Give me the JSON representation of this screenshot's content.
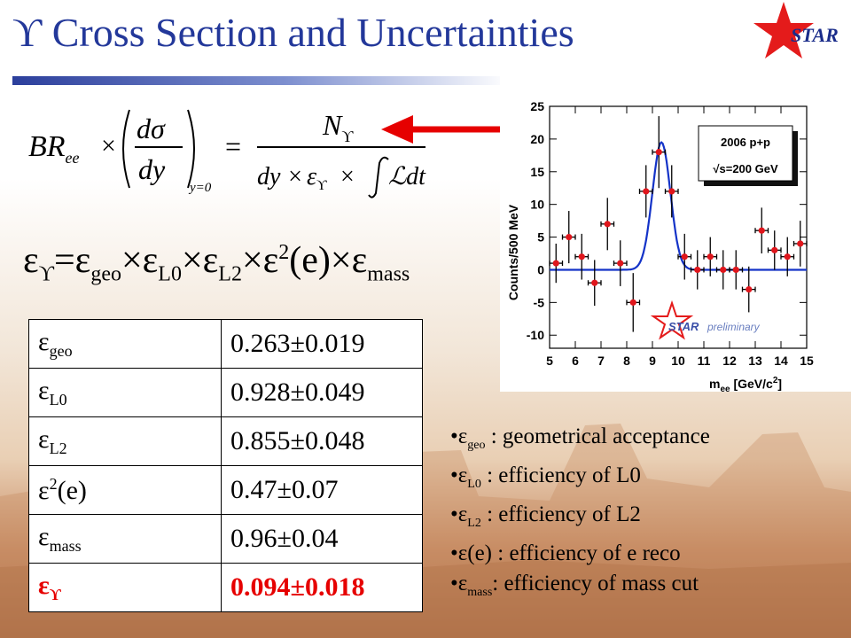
{
  "title": {
    "symbol": "ϒ",
    "text": "Cross Section and Uncertainties"
  },
  "logo": {
    "text": "STAR"
  },
  "formula": {
    "br": "BR",
    "br_sub": "ee",
    "dsigma": "dσ",
    "dy": "dy",
    "y0": "y=0",
    "numerator": "N",
    "numerator_sub": "ϒ",
    "den_dy": "dy ×",
    "den_eps": "ε",
    "den_eps_sub": "ϒ",
    "den_times": "×",
    "den_lumi": "ℒdt"
  },
  "efficiency_equation": {
    "lhs": "ε",
    "lhs_sub": "ϒ",
    "terms": [
      {
        "base": "ε",
        "sub": "geo",
        "sup": ""
      },
      {
        "base": "ε",
        "sub": "L0",
        "sup": ""
      },
      {
        "base": "ε",
        "sub": "L2",
        "sup": ""
      },
      {
        "base": "ε",
        "sub": "",
        "sup": "2",
        "suffix": "(e)"
      },
      {
        "base": "ε",
        "sub": "mass",
        "sup": ""
      }
    ]
  },
  "table": {
    "rows": [
      {
        "key": "ε",
        "sub": "geo",
        "sup": "",
        "suffix": "",
        "value": "0.263±0.019"
      },
      {
        "key": "ε",
        "sub": "L0",
        "sup": "",
        "suffix": "",
        "value": "0.928±0.049"
      },
      {
        "key": "ε",
        "sub": "L2",
        "sup": "",
        "suffix": "",
        "value": "0.855±0.048"
      },
      {
        "key": "ε",
        "sub": "",
        "sup": "2",
        "suffix": "(e)",
        "value": "0.47±0.07"
      },
      {
        "key": "ε",
        "sub": "mass",
        "sup": "",
        "suffix": "",
        "value": "0.96±0.04"
      },
      {
        "key": "ε",
        "sub": "ϒ",
        "sup": "",
        "suffix": "",
        "value": "0.094±0.018"
      }
    ]
  },
  "legend": {
    "items": [
      {
        "sub": "geo",
        "text": " : geometrical acceptance"
      },
      {
        "sub": "L0",
        "text": "  : efficiency of L0"
      },
      {
        "sub": "L2",
        "text": "  : efficiency of L2"
      },
      {
        "sub": "",
        "text": "(e) : efficiency of e reco"
      },
      {
        "sub": "mass",
        "text": ": efficiency of mass cut"
      }
    ]
  },
  "chart_data": {
    "type": "scatter",
    "ylabel": "Counts/500 MeV",
    "xlabel_main": "m",
    "xlabel_sub": "ee",
    "xlabel_unit": " [GeV/c",
    "xlabel_sup": "2",
    "xlabel_close": "]",
    "xlim": [
      5,
      15
    ],
    "ylim": [
      -12,
      25
    ],
    "xticks": [
      5,
      6,
      7,
      8,
      9,
      10,
      11,
      12,
      13,
      14,
      15
    ],
    "yticks": [
      -10,
      -5,
      0,
      5,
      10,
      15,
      20,
      25
    ],
    "infobox_line1": "2006 p+p",
    "infobox_line2": "√s=200 GeV",
    "watermark": "STAR",
    "watermark_sub": "preliminary",
    "points": [
      {
        "x": 5.25,
        "y": 1.0,
        "yerr": 3.0
      },
      {
        "x": 5.75,
        "y": 5.0,
        "yerr": 4.0
      },
      {
        "x": 6.25,
        "y": 2.0,
        "yerr": 3.5
      },
      {
        "x": 6.75,
        "y": -2.0,
        "yerr": 3.5
      },
      {
        "x": 7.25,
        "y": 7.0,
        "yerr": 4.0
      },
      {
        "x": 7.75,
        "y": 1.0,
        "yerr": 3.5
      },
      {
        "x": 8.25,
        "y": -5.0,
        "yerr": 4.5
      },
      {
        "x": 8.75,
        "y": 12.0,
        "yerr": 4.0
      },
      {
        "x": 9.25,
        "y": 18.0,
        "yerr": 5.5
      },
      {
        "x": 9.75,
        "y": 12.0,
        "yerr": 4.0
      },
      {
        "x": 10.25,
        "y": 2.0,
        "yerr": 3.5
      },
      {
        "x": 10.75,
        "y": 0.0,
        "yerr": 3.0
      },
      {
        "x": 11.25,
        "y": 2.0,
        "yerr": 3.0
      },
      {
        "x": 11.75,
        "y": 0.0,
        "yerr": 3.0
      },
      {
        "x": 12.25,
        "y": 0.0,
        "yerr": 3.0
      },
      {
        "x": 12.75,
        "y": -3.0,
        "yerr": 3.5
      },
      {
        "x": 13.25,
        "y": 6.0,
        "yerr": 3.5
      },
      {
        "x": 13.75,
        "y": 3.0,
        "yerr": 3.0
      },
      {
        "x": 14.25,
        "y": 2.0,
        "yerr": 3.0
      },
      {
        "x": 14.75,
        "y": 4.0,
        "yerr": 3.5
      }
    ],
    "fit": {
      "type": "gaussian",
      "mean": 9.35,
      "sigma": 0.35,
      "amplitude": 19.5
    },
    "colors": {
      "points": "#e0161c",
      "fit": "#1433c8",
      "infobox_shadow": "#111111"
    }
  }
}
